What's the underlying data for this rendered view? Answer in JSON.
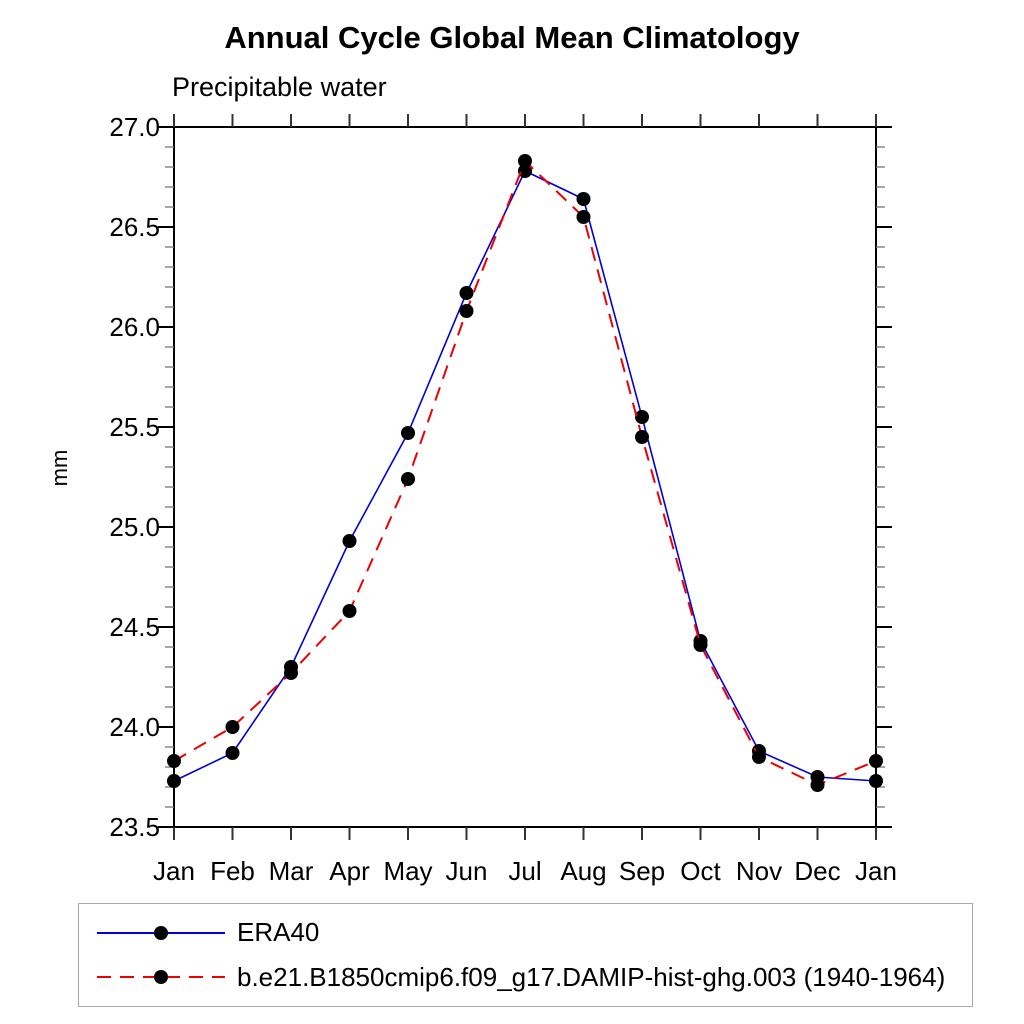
{
  "page": {
    "background": "#ffffff"
  },
  "chart_data": {
    "type": "line",
    "title": "Annual Cycle Global Mean Climatology",
    "subtitle": "Precipitable water",
    "ylabel": "mm",
    "xlabel": "",
    "categories": [
      "Jan",
      "Feb",
      "Mar",
      "Apr",
      "May",
      "Jun",
      "Jul",
      "Aug",
      "Sep",
      "Oct",
      "Nov",
      "Dec",
      "Jan"
    ],
    "ylim": [
      23.5,
      27.0
    ],
    "ytick_interval": 0.5,
    "ytick_minor_interval": 0.1,
    "ytick_labels": [
      "23.5",
      "24.0",
      "24.5",
      "25.0",
      "25.5",
      "26.0",
      "26.5",
      "27.0"
    ],
    "grid": false,
    "legend_position": "bottom-left-box",
    "marker": {
      "shape": "circle",
      "color": "#000000",
      "radius": 7
    },
    "axis_color": "#000000",
    "minor_tick_color": "#777777",
    "series": [
      {
        "name": "ERA40",
        "color": "#0000dd",
        "style": "solid",
        "values": [
          23.73,
          23.87,
          24.3,
          24.93,
          25.47,
          26.17,
          26.78,
          26.64,
          25.55,
          24.43,
          23.88,
          23.75,
          23.73
        ]
      },
      {
        "name": "b.e21.B1850cmip6.f09_g17.DAMIP-hist-ghg.003 (1940-1964)",
        "color": "#ee0000",
        "style": "dashed",
        "values": [
          23.83,
          24.0,
          24.27,
          24.58,
          25.24,
          26.08,
          26.83,
          26.55,
          25.45,
          24.41,
          23.85,
          23.71,
          23.83
        ]
      }
    ]
  }
}
